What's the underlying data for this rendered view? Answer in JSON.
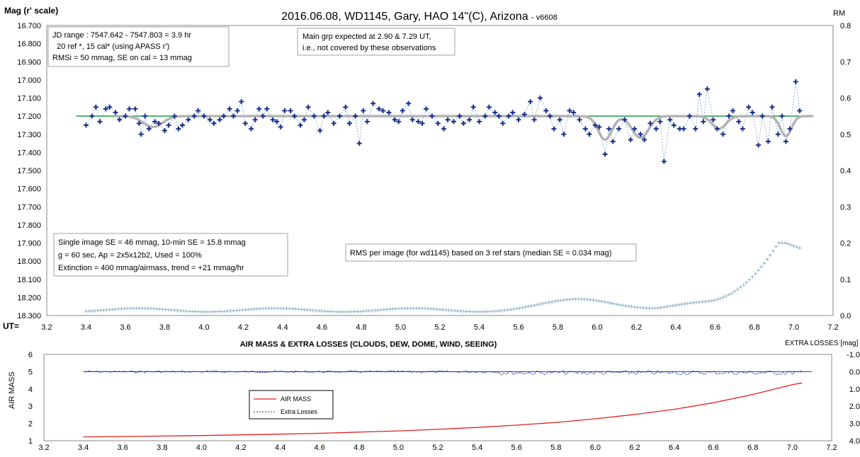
{
  "chart_data": [
    {
      "type": "scatter",
      "title": "2016.06.08,  WD1145, Gary, HAO  14\"(C), Arizona",
      "title_suffix": "- v6608",
      "ylabel": "Mag (r' scale)",
      "y2label": "RM",
      "xlabel": "UT=",
      "xlim": [
        3.2,
        7.2
      ],
      "ylim": [
        16.7,
        18.3
      ],
      "y_reversed": true,
      "y2lim": [
        0.0,
        0.8
      ],
      "grid": false,
      "x_ticks": [
        "3.2",
        "3.4",
        "3.6",
        "3.8",
        "4.0",
        "4.2",
        "4.4",
        "4.6",
        "4.8",
        "5.0",
        "5.2",
        "5.4",
        "5.6",
        "5.8",
        "6.0",
        "6.2",
        "6.4",
        "6.6",
        "6.8",
        "7.0",
        "7.2"
      ],
      "y_ticks": [
        "16.700",
        "16.800",
        "16.900",
        "17.000",
        "17.100",
        "17.200",
        "17.300",
        "17.400",
        "17.500",
        "17.600",
        "17.700",
        "17.800",
        "17.900",
        "18.000",
        "18.100",
        "18.200",
        "18.300"
      ],
      "y2_ticks": [
        "0.8",
        "0.7",
        "0.6",
        "0.5",
        "0.4",
        "0.3",
        "0.2",
        "0.1",
        "0.0"
      ],
      "annotations": {
        "box1": [
          "JD range  : 7547.642 - 7547.803 = 3.9 hr",
          "  20 ref *, 15 cal* (using APASS r')",
          "RMSi = 50 mmag, SE on cal = 13 mmag"
        ],
        "box2": [
          "Main grp expected at 2.90 & 7.29 UT,",
          "i.e., not covered by these observations"
        ],
        "box3": [
          "Single image SE = 46 mmag, 10-min SE = 15.8 mmag",
          "g = 60 sec, Ap = 2x5x12b2, Used = 100%",
          "Extinction = 400 mmag/airmass, trend = +21 mmag/hr"
        ],
        "box4": [
          "RMS per image (for wd1145) based on 3 ref stars (median SE = 0.034 mag)"
        ]
      },
      "reference_level": 17.2,
      "reference_x": [
        3.35,
        7.1
      ],
      "model_dips": [
        {
          "center": 3.74,
          "depth": 0.06,
          "width": 0.07
        },
        {
          "center": 6.04,
          "depth": 0.13,
          "width": 0.05
        },
        {
          "center": 6.22,
          "depth": 0.12,
          "width": 0.06
        },
        {
          "center": 6.62,
          "depth": 0.07,
          "width": 0.05
        },
        {
          "center": 6.96,
          "depth": 0.11,
          "width": 0.04
        }
      ],
      "series": [
        {
          "values": [
            [
              3.4,
              17.25
            ],
            [
              3.43,
              17.2
            ],
            [
              3.45,
              17.15
            ],
            [
              3.47,
              17.23
            ],
            [
              3.5,
              17.16
            ],
            [
              3.52,
              17.15
            ],
            [
              3.55,
              17.18
            ],
            [
              3.57,
              17.22
            ],
            [
              3.6,
              17.2
            ],
            [
              3.62,
              17.16
            ],
            [
              3.65,
              17.16
            ],
            [
              3.67,
              17.24
            ],
            [
              3.68,
              17.3
            ],
            [
              3.7,
              17.2
            ],
            [
              3.72,
              17.27
            ],
            [
              3.75,
              17.23
            ],
            [
              3.77,
              17.24
            ],
            [
              3.8,
              17.28
            ],
            [
              3.82,
              17.25
            ],
            [
              3.85,
              17.2
            ],
            [
              3.87,
              17.27
            ],
            [
              3.89,
              17.25
            ],
            [
              3.92,
              17.22
            ],
            [
              3.95,
              17.2
            ],
            [
              3.97,
              17.17
            ],
            [
              4.0,
              17.2
            ],
            [
              4.03,
              17.22
            ],
            [
              4.05,
              17.24
            ],
            [
              4.08,
              17.22
            ],
            [
              4.1,
              17.2
            ],
            [
              4.13,
              17.16
            ],
            [
              4.15,
              17.2
            ],
            [
              4.17,
              17.17
            ],
            [
              4.19,
              17.12
            ],
            [
              4.21,
              17.24
            ],
            [
              4.24,
              17.27
            ],
            [
              4.26,
              17.22
            ],
            [
              4.28,
              17.16
            ],
            [
              4.3,
              17.2
            ],
            [
              4.32,
              17.16
            ],
            [
              4.35,
              17.22
            ],
            [
              4.37,
              17.23
            ],
            [
              4.39,
              17.26
            ],
            [
              4.41,
              17.17
            ],
            [
              4.44,
              17.17
            ],
            [
              4.46,
              17.2
            ],
            [
              4.49,
              17.25
            ],
            [
              4.51,
              17.22
            ],
            [
              4.53,
              17.15
            ],
            [
              4.56,
              17.2
            ],
            [
              4.59,
              17.28
            ],
            [
              4.61,
              17.2
            ],
            [
              4.63,
              17.18
            ],
            [
              4.66,
              17.24
            ],
            [
              4.69,
              17.2
            ],
            [
              4.72,
              17.15
            ],
            [
              4.74,
              17.24
            ],
            [
              4.77,
              17.2
            ],
            [
              4.79,
              17.35
            ],
            [
              4.81,
              17.17
            ],
            [
              4.83,
              17.23
            ],
            [
              4.86,
              17.13
            ],
            [
              4.89,
              17.16
            ],
            [
              4.91,
              17.17
            ],
            [
              4.94,
              17.18
            ],
            [
              4.97,
              17.22
            ],
            [
              4.99,
              17.23
            ],
            [
              5.01,
              17.17
            ],
            [
              5.04,
              17.13
            ],
            [
              5.06,
              17.22
            ],
            [
              5.09,
              17.23
            ],
            [
              5.11,
              17.24
            ],
            [
              5.13,
              17.16
            ],
            [
              5.16,
              17.2
            ],
            [
              5.19,
              17.24
            ],
            [
              5.22,
              17.27
            ],
            [
              5.24,
              17.22
            ],
            [
              5.27,
              17.23
            ],
            [
              5.3,
              17.2
            ],
            [
              5.32,
              17.24
            ],
            [
              5.35,
              17.22
            ],
            [
              5.37,
              17.15
            ],
            [
              5.4,
              17.23
            ],
            [
              5.43,
              17.2
            ],
            [
              5.45,
              17.15
            ],
            [
              5.48,
              17.18
            ],
            [
              5.5,
              17.2
            ],
            [
              5.52,
              17.24
            ],
            [
              5.55,
              17.2
            ],
            [
              5.57,
              17.18
            ],
            [
              5.6,
              17.22
            ],
            [
              5.63,
              17.19
            ],
            [
              5.66,
              17.12
            ],
            [
              5.68,
              17.22
            ],
            [
              5.71,
              17.1
            ],
            [
              5.74,
              17.17
            ],
            [
              5.76,
              17.2
            ],
            [
              5.78,
              17.27
            ],
            [
              5.81,
              17.22
            ],
            [
              5.83,
              17.3
            ],
            [
              5.86,
              17.17
            ],
            [
              5.88,
              17.18
            ],
            [
              5.91,
              17.22
            ],
            [
              5.94,
              17.27
            ],
            [
              5.96,
              17.3
            ],
            [
              5.99,
              17.25
            ],
            [
              6.01,
              17.26
            ],
            [
              6.04,
              17.41
            ],
            [
              6.06,
              17.27
            ],
            [
              6.08,
              17.34
            ],
            [
              6.11,
              17.27
            ],
            [
              6.14,
              17.22
            ],
            [
              6.17,
              17.33
            ],
            [
              6.19,
              17.27
            ],
            [
              6.22,
              17.3
            ],
            [
              6.24,
              17.33
            ],
            [
              6.27,
              17.24
            ],
            [
              6.3,
              17.27
            ],
            [
              6.32,
              17.23
            ],
            [
              6.34,
              17.45
            ],
            [
              6.37,
              17.22
            ],
            [
              6.39,
              17.25
            ],
            [
              6.42,
              17.27
            ],
            [
              6.44,
              17.27
            ],
            [
              6.47,
              17.2
            ],
            [
              6.5,
              17.27
            ],
            [
              6.52,
              17.08
            ],
            [
              6.54,
              17.23
            ],
            [
              6.56,
              17.05
            ],
            [
              6.59,
              17.22
            ],
            [
              6.61,
              17.27
            ],
            [
              6.64,
              17.3
            ],
            [
              6.67,
              17.2
            ],
            [
              6.69,
              17.17
            ],
            [
              6.72,
              17.23
            ],
            [
              6.74,
              17.27
            ],
            [
              6.77,
              17.15
            ],
            [
              6.79,
              17.18
            ],
            [
              6.82,
              17.36
            ],
            [
              6.84,
              17.2
            ],
            [
              6.87,
              17.34
            ],
            [
              6.89,
              17.15
            ],
            [
              6.92,
              17.3
            ],
            [
              6.94,
              17.2
            ],
            [
              6.96,
              17.34
            ],
            [
              6.98,
              17.27
            ],
            [
              7.01,
              17.01
            ],
            [
              7.03,
              17.17
            ]
          ]
        }
      ],
      "rms_series": {
        "x_start": 3.4,
        "x_end": 7.03,
        "values_desc": "RMS per image, right axis"
      }
    },
    {
      "type": "line",
      "title": "AIR MASS & EXTRA LOSSES (CLOUDS, DEW, DOME, WIND, SEEING)",
      "ylabel": "AIR MASS",
      "y2label": "EXTRA LOSSES [mag]",
      "xlim": [
        3.2,
        7.2
      ],
      "ylim": [
        1,
        6
      ],
      "y2lim": [
        -1.0,
        4.0
      ],
      "x_ticks": [
        "3.2",
        "3.4",
        "3.6",
        "3.8",
        "4.0",
        "4.2",
        "4.4",
        "4.6",
        "4.8",
        "5.0",
        "5.2",
        "5.4",
        "5.6",
        "5.8",
        "6.0",
        "6.2",
        "6.4",
        "6.6",
        "6.8",
        "7.0",
        "7.2"
      ],
      "y_ticks": [
        "6",
        "5",
        "4",
        "3",
        "2",
        "1"
      ],
      "y2_ticks": [
        "-1.0",
        "0.0",
        "1.0",
        "2.0",
        "3.0",
        "4.0"
      ],
      "legend": [
        "AIR MASS",
        "Extra Losses"
      ],
      "legend_position": "center-left",
      "series": [
        {
          "name": "AIR MASS",
          "color": "#e02020",
          "values": [
            [
              3.4,
              1.22
            ],
            [
              3.6,
              1.24
            ],
            [
              3.8,
              1.27
            ],
            [
              4.0,
              1.3
            ],
            [
              4.2,
              1.34
            ],
            [
              4.4,
              1.38
            ],
            [
              4.6,
              1.43
            ],
            [
              4.8,
              1.5
            ],
            [
              5.0,
              1.57
            ],
            [
              5.2,
              1.66
            ],
            [
              5.4,
              1.77
            ],
            [
              5.6,
              1.9
            ],
            [
              5.8,
              2.06
            ],
            [
              6.0,
              2.27
            ],
            [
              6.2,
              2.52
            ],
            [
              6.4,
              2.82
            ],
            [
              6.6,
              3.2
            ],
            [
              6.8,
              3.68
            ],
            [
              7.0,
              4.25
            ],
            [
              7.05,
              4.35
            ]
          ]
        },
        {
          "name": "Extra Losses",
          "color": "#1f2f9f",
          "x_start": 3.4,
          "x_end": 7.05,
          "baseline": 0.0
        }
      ]
    }
  ]
}
